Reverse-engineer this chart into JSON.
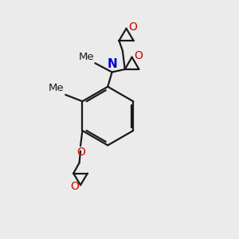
{
  "bg_color": "#ebebeb",
  "bond_color": "#1a1a1a",
  "oxygen_color": "#cc0000",
  "nitrogen_color": "#0000cc",
  "lw": 1.6,
  "fs": 9.5,
  "xlim": [
    0,
    10
  ],
  "ylim": [
    0,
    10
  ]
}
